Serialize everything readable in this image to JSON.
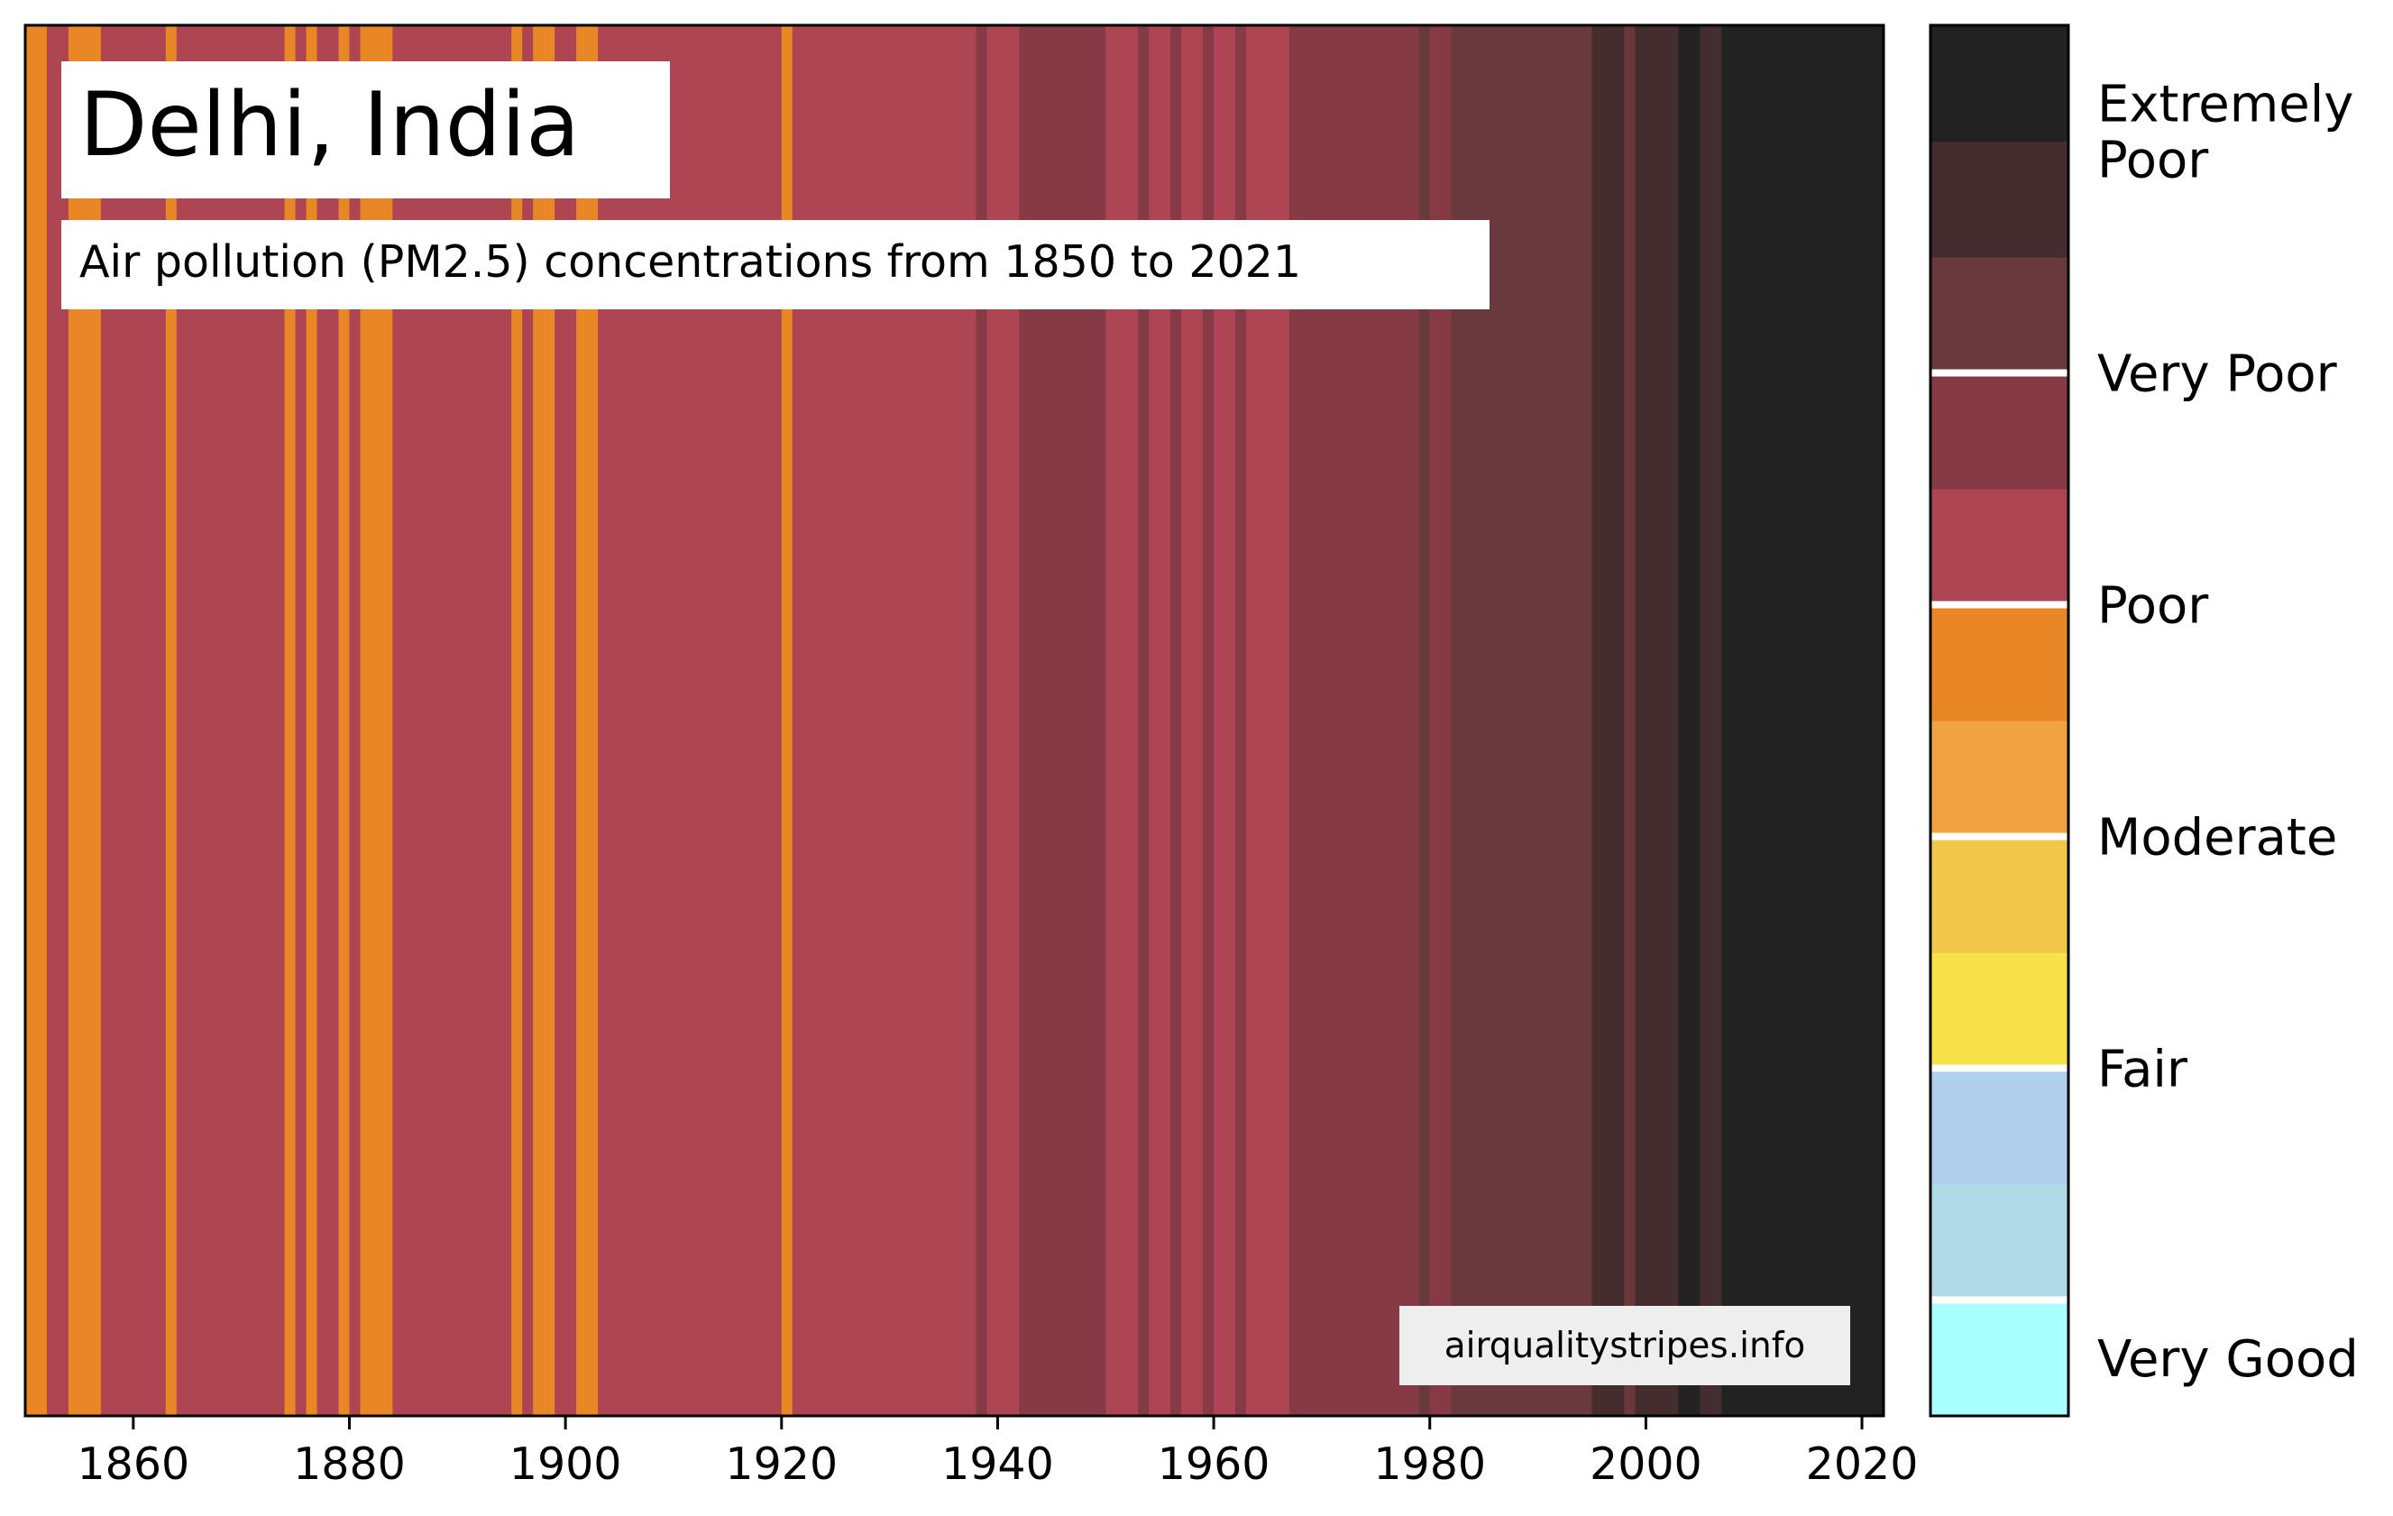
{
  "chart_data": {
    "type": "heatmap",
    "title": "Delhi, India",
    "subtitle": "Air pollution (PM2.5) concentrations from 1850 to 2021",
    "watermark": "airqualitystripes.info",
    "xlim": [
      1850,
      2022
    ],
    "x_ticks": [
      1860,
      1880,
      1900,
      1920,
      1940,
      1960,
      1980,
      2000,
      2020
    ],
    "grid": false,
    "palette": {
      "very_good": "#aaffff",
      "fair_light": "#b0dbe6",
      "fair": "#b0d0ee",
      "moderate_light": "#f7e249",
      "moderate": "#f2c84b",
      "poor_light": "#f0a340",
      "poor": "#e98726",
      "very_poor_light": "#ad4553",
      "very_poor": "#863a46",
      "extremely_poor_light": "#6a393e",
      "extremely_poor": "#452d2f",
      "hazardous": "#222222"
    },
    "stripe_runs": [
      {
        "start": 1850,
        "end": 1852,
        "color": "poor"
      },
      {
        "start": 1852,
        "end": 1854,
        "color": "very_poor_light"
      },
      {
        "start": 1854,
        "end": 1857,
        "color": "poor"
      },
      {
        "start": 1857,
        "end": 1863,
        "color": "very_poor_light"
      },
      {
        "start": 1863,
        "end": 1864,
        "color": "poor"
      },
      {
        "start": 1864,
        "end": 1874,
        "color": "very_poor_light"
      },
      {
        "start": 1874,
        "end": 1875,
        "color": "poor"
      },
      {
        "start": 1875,
        "end": 1876,
        "color": "very_poor_light"
      },
      {
        "start": 1876,
        "end": 1877,
        "color": "poor"
      },
      {
        "start": 1877,
        "end": 1879,
        "color": "very_poor_light"
      },
      {
        "start": 1879,
        "end": 1880,
        "color": "poor"
      },
      {
        "start": 1880,
        "end": 1881,
        "color": "very_poor_light"
      },
      {
        "start": 1881,
        "end": 1884,
        "color": "poor"
      },
      {
        "start": 1884,
        "end": 1895,
        "color": "very_poor_light"
      },
      {
        "start": 1895,
        "end": 1896,
        "color": "poor"
      },
      {
        "start": 1896,
        "end": 1897,
        "color": "very_poor_light"
      },
      {
        "start": 1897,
        "end": 1899,
        "color": "poor"
      },
      {
        "start": 1899,
        "end": 1901,
        "color": "very_poor_light"
      },
      {
        "start": 1901,
        "end": 1903,
        "color": "poor"
      },
      {
        "start": 1903,
        "end": 1920,
        "color": "very_poor_light"
      },
      {
        "start": 1920,
        "end": 1921,
        "color": "poor"
      },
      {
        "start": 1921,
        "end": 1938,
        "color": "very_poor_light"
      },
      {
        "start": 1938,
        "end": 1939,
        "color": "very_poor"
      },
      {
        "start": 1939,
        "end": 1942,
        "color": "very_poor_light"
      },
      {
        "start": 1942,
        "end": 1950,
        "color": "very_poor"
      },
      {
        "start": 1950,
        "end": 1953,
        "color": "very_poor_light"
      },
      {
        "start": 1953,
        "end": 1954,
        "color": "very_poor"
      },
      {
        "start": 1954,
        "end": 1956,
        "color": "very_poor_light"
      },
      {
        "start": 1956,
        "end": 1957,
        "color": "very_poor"
      },
      {
        "start": 1957,
        "end": 1959,
        "color": "very_poor_light"
      },
      {
        "start": 1959,
        "end": 1960,
        "color": "very_poor"
      },
      {
        "start": 1960,
        "end": 1962,
        "color": "very_poor_light"
      },
      {
        "start": 1962,
        "end": 1963,
        "color": "very_poor"
      },
      {
        "start": 1963,
        "end": 1967,
        "color": "very_poor_light"
      },
      {
        "start": 1967,
        "end": 1979,
        "color": "very_poor"
      },
      {
        "start": 1979,
        "end": 1980,
        "color": "extremely_poor_light"
      },
      {
        "start": 1980,
        "end": 1982,
        "color": "very_poor"
      },
      {
        "start": 1982,
        "end": 1995,
        "color": "extremely_poor_light"
      },
      {
        "start": 1995,
        "end": 1998,
        "color": "extremely_poor"
      },
      {
        "start": 1998,
        "end": 1999,
        "color": "extremely_poor_light"
      },
      {
        "start": 1999,
        "end": 2003,
        "color": "extremely_poor"
      },
      {
        "start": 2003,
        "end": 2005,
        "color": "hazardous"
      },
      {
        "start": 2005,
        "end": 2007,
        "color": "extremely_poor"
      },
      {
        "start": 2007,
        "end": 2022,
        "color": "hazardous"
      }
    ],
    "legend": {
      "segments": [
        {
          "color": "very_good",
          "label": "Very Good"
        },
        {
          "color": "fair_light",
          "label": ""
        },
        {
          "color": "fair",
          "label": "Fair"
        },
        {
          "color": "moderate_light",
          "label": ""
        },
        {
          "color": "moderate",
          "label": "Moderate"
        },
        {
          "color": "poor_light",
          "label": ""
        },
        {
          "color": "poor",
          "label": "Poor"
        },
        {
          "color": "very_poor_light",
          "label": ""
        },
        {
          "color": "very_poor",
          "label": "Very Poor"
        },
        {
          "color": "extremely_poor_light",
          "label": ""
        },
        {
          "color": "extremely_poor",
          "label": "Extremely Poor"
        },
        {
          "color": "hazardous",
          "label": ""
        }
      ]
    }
  }
}
